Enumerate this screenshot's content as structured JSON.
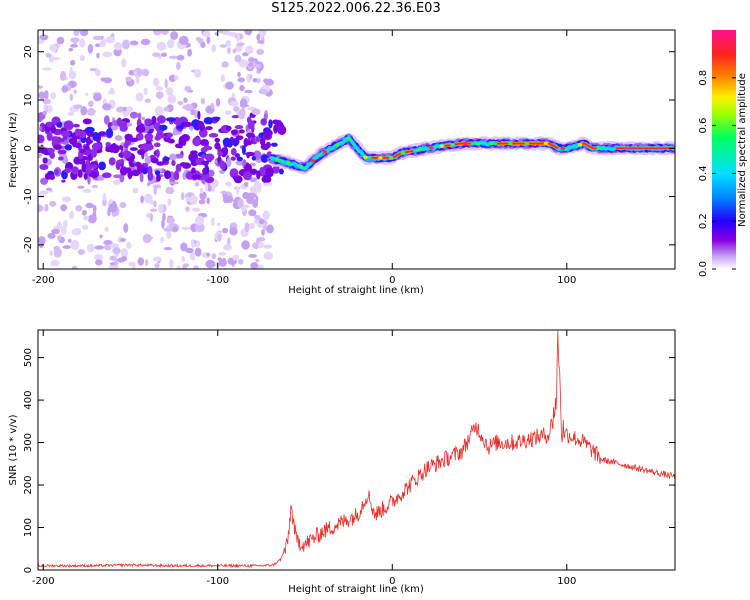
{
  "title": "S125.2022.006.22.36.E03",
  "colors": {
    "snr_line": "#e8302a",
    "spec_low": "#8a00e0",
    "spec_mid": "#00e0ff",
    "spec_high": "#ff2040"
  },
  "chart_data": [
    {
      "type": "heatmap",
      "xlabel": "Height of straight line (km)",
      "ylabel": "Frequency (Hz)",
      "xlim": [
        -203,
        162
      ],
      "ylim": [
        -25,
        24.5
      ],
      "xticks": [
        -200,
        -100,
        0,
        100
      ],
      "yticks": [
        -20,
        -10,
        0,
        10,
        20
      ],
      "colorbar": {
        "label": "Normalized spectral amplitude",
        "range": [
          0,
          1
        ],
        "ticks": [
          "0.0",
          "0.2",
          "0.4",
          "0.6",
          "0.8"
        ],
        "tick_values": [
          0.0,
          0.2,
          0.4,
          0.6,
          0.8
        ]
      },
      "ridge": {
        "x": [
          -70,
          -60,
          -50,
          -40,
          -30,
          -25,
          -20,
          -15,
          -10,
          0,
          5,
          20,
          40,
          60,
          70,
          80,
          90,
          95,
          100,
          110,
          115,
          120,
          162
        ],
        "frequency": [
          -2,
          -3,
          -4,
          -1,
          1,
          2,
          0,
          -2,
          -2,
          -2,
          -1,
          0,
          1,
          1,
          1,
          1,
          1,
          0,
          0,
          1,
          0,
          0,
          0
        ]
      }
    },
    {
      "type": "line",
      "xlabel": "Height of straight line (km)",
      "ylabel": "SNR (10 * v/v)",
      "xlim": [
        -203,
        162
      ],
      "ylim": [
        0,
        565
      ],
      "xticks": [
        -200,
        -100,
        0,
        100
      ],
      "yticks": [
        0,
        100,
        200,
        300,
        400,
        500
      ],
      "series": [
        {
          "x": [
            -203,
            -190,
            -170,
            -150,
            -130,
            -110,
            -90,
            -75,
            -68,
            -64,
            -60,
            -58,
            -55,
            -50,
            -40,
            -30,
            -20,
            -14,
            -10,
            0,
            10,
            20,
            30,
            40,
            48,
            55,
            60,
            70,
            80,
            90,
            94,
            95,
            97,
            100,
            110,
            115,
            120,
            130,
            140,
            150,
            162
          ],
          "values": [
            10,
            10,
            10,
            12,
            10,
            10,
            10,
            10,
            12,
            25,
            60,
            150,
            70,
            60,
            90,
            110,
            130,
            180,
            130,
            160,
            200,
            240,
            260,
            280,
            340,
            290,
            300,
            300,
            310,
            320,
            400,
            560,
            330,
            320,
            300,
            280,
            260,
            250,
            240,
            230,
            220
          ]
        }
      ]
    }
  ]
}
